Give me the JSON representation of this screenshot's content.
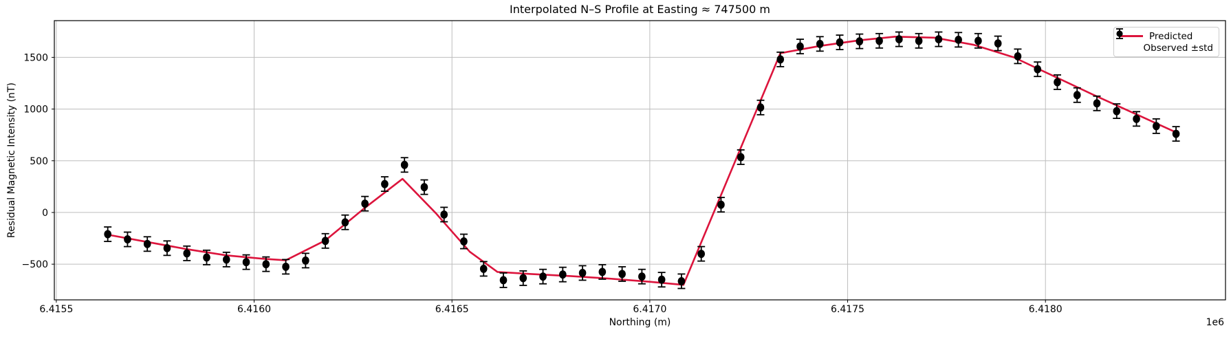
{
  "title": "Interpolated N–S Profile at Easting ≈ 747500 m",
  "axes": {
    "xlabel": "Northing (m)",
    "ylabel": "Residual Magnetic Intensity (nT)",
    "offset_text": "1e6",
    "xtick_labels": [
      "6.4155",
      "6.4160",
      "6.4165",
      "6.4170",
      "6.4175",
      "6.4180"
    ],
    "ytick_labels": [
      "−500",
      "0",
      "500",
      "1000",
      "1500"
    ]
  },
  "legend": {
    "position": "upper right",
    "items": [
      {
        "label": "Predicted",
        "type": "line",
        "color": "#DC143C"
      },
      {
        "label": "Observed ±std",
        "type": "errorbar-marker",
        "color": "#000000"
      }
    ]
  },
  "colors": {
    "predicted": "#DC143C",
    "observed": "#000000",
    "grid": "#bdbdbd",
    "spine": "#000000",
    "background": "#ffffff"
  },
  "chart_data": {
    "type": "line",
    "title": "Interpolated N–S Profile at Easting ≈ 747500 m",
    "xlabel": "Northing (m)",
    "ylabel": "Residual Magnetic Intensity (nT)",
    "x_scale_label": "1e6",
    "xlim": [
      6415495,
      6418455
    ],
    "ylim": [
      -845,
      1855
    ],
    "xticks": [
      6415500,
      6416000,
      6416500,
      6417000,
      6417500,
      6418000
    ],
    "yticks": [
      -500,
      0,
      500,
      1000,
      1500
    ],
    "grid": true,
    "legend_position": "upper right",
    "series": [
      {
        "name": "Predicted",
        "kind": "line",
        "color": "#DC143C",
        "linewidth": 2.6,
        "points": [
          [
            6415630,
            -215
          ],
          [
            6415730,
            -285
          ],
          [
            6415830,
            -355
          ],
          [
            6415930,
            -415
          ],
          [
            6416030,
            -450
          ],
          [
            6416080,
            -462
          ],
          [
            6416180,
            -270
          ],
          [
            6416280,
            45
          ],
          [
            6416375,
            325
          ],
          [
            6416460,
            -10
          ],
          [
            6416545,
            -380
          ],
          [
            6416615,
            -575
          ],
          [
            6416700,
            -595
          ],
          [
            6416800,
            -615
          ],
          [
            6416900,
            -640
          ],
          [
            6417000,
            -670
          ],
          [
            6417085,
            -700
          ],
          [
            6417330,
            1540
          ],
          [
            6417430,
            1610
          ],
          [
            6417530,
            1665
          ],
          [
            6417620,
            1700
          ],
          [
            6417720,
            1690
          ],
          [
            6417820,
            1620
          ],
          [
            6417920,
            1500
          ],
          [
            6418120,
            1140
          ],
          [
            6418330,
            775
          ]
        ]
      },
      {
        "name": "Observed ±std",
        "kind": "scatter_errorbar",
        "color": "#000000",
        "std": 70,
        "marker_radius": 5.3,
        "x": [
          6415630,
          6415680,
          6415730,
          6415780,
          6415830,
          6415880,
          6415930,
          6415980,
          6416030,
          6416080,
          6416130,
          6416180,
          6416230,
          6416280,
          6416330,
          6416380,
          6416430,
          6416480,
          6416530,
          6416580,
          6416630,
          6416680,
          6416730,
          6416780,
          6416830,
          6416880,
          6416930,
          6416980,
          6417030,
          6417080,
          6417130,
          6417180,
          6417230,
          6417280,
          6417330,
          6417380,
          6417430,
          6417480,
          6417530,
          6417580,
          6417630,
          6417680,
          6417730,
          6417780,
          6417830,
          6417880,
          6417930,
          6417980,
          6418030,
          6418080,
          6418130,
          6418180,
          6418230,
          6418280,
          6418330
        ],
        "y": [
          -210,
          -260,
          -305,
          -345,
          -395,
          -435,
          -455,
          -480,
          -500,
          -525,
          -465,
          -275,
          -95,
          85,
          275,
          460,
          245,
          -20,
          -280,
          -545,
          -655,
          -635,
          -620,
          -600,
          -585,
          -575,
          -595,
          -620,
          -650,
          -665,
          -400,
          75,
          535,
          1015,
          1480,
          1605,
          1630,
          1645,
          1655,
          1660,
          1675,
          1660,
          1675,
          1670,
          1660,
          1635,
          1510,
          1385,
          1260,
          1135,
          1055,
          980,
          905,
          835,
          760
        ]
      }
    ]
  }
}
